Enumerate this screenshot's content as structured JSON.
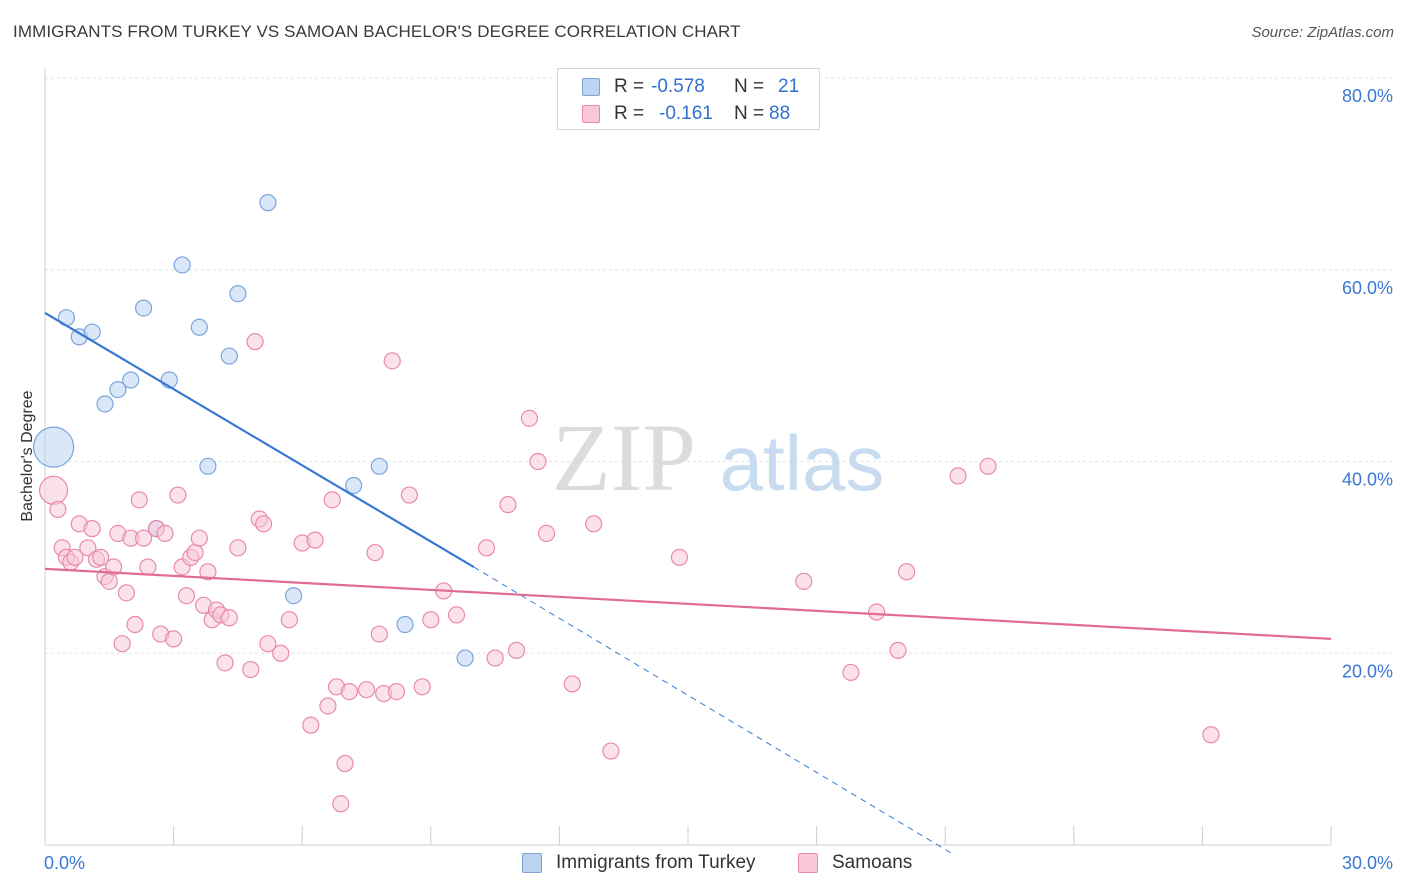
{
  "title": "IMMIGRANTS FROM TURKEY VS SAMOAN BACHELOR'S DEGREE CORRELATION CHART",
  "source": "Source: ZipAtlas.com",
  "watermark": {
    "zip": "ZIP",
    "atlas": "atlas"
  },
  "legend": {
    "rows": [
      {
        "r_label": "R =",
        "r_value": "-0.578",
        "n_label": "N =",
        "n_value": "21"
      },
      {
        "r_label": "R =",
        "r_value": "-0.161",
        "n_label": "N =",
        "n_value": "88"
      }
    ]
  },
  "colors": {
    "blue_fill": "#bcd4f2",
    "blue_stroke": "#7aa6dc",
    "blue_line": "#3a78d4",
    "pink_fill": "#f8c8d8",
    "pink_stroke": "#e98aaa",
    "pink_line": "#e06b94",
    "tick_label": "#3a78d4",
    "grid": "#e4e4e4"
  },
  "chart_data": {
    "type": "scatter",
    "title": "IMMIGRANTS FROM TURKEY VS SAMOAN BACHELOR'S DEGREE CORRELATION CHART",
    "xlabel": "",
    "ylabel": "Bachelor's Degree",
    "xlim": [
      0,
      30
    ],
    "ylim": [
      0,
      80
    ],
    "x_tick_labels": [
      "0.0%",
      "30.0%"
    ],
    "y_tick_labels": [
      "20.0%",
      "40.0%",
      "60.0%",
      "80.0%"
    ],
    "y_ticks": [
      20,
      40,
      60,
      80
    ],
    "grid": true,
    "legend_position": "bottom",
    "series": [
      {
        "name": "Immigrants from Turkey",
        "color": "#7aa6dc",
        "points": [
          [
            0.2,
            41.5,
            3
          ],
          [
            0.5,
            55,
            1
          ],
          [
            0.8,
            53,
            1
          ],
          [
            1.1,
            53.5,
            1
          ],
          [
            1.4,
            46,
            1
          ],
          [
            1.7,
            47.5,
            1
          ],
          [
            2.0,
            48.5,
            1
          ],
          [
            2.3,
            56,
            1
          ],
          [
            2.6,
            33,
            1
          ],
          [
            2.9,
            48.5,
            1
          ],
          [
            3.2,
            60.5,
            1
          ],
          [
            3.6,
            54,
            1
          ],
          [
            3.8,
            39.5,
            1
          ],
          [
            4.3,
            51,
            1
          ],
          [
            4.5,
            57.5,
            1
          ],
          [
            5.2,
            67,
            1
          ],
          [
            5.8,
            26,
            1
          ],
          [
            7.2,
            37.5,
            1
          ],
          [
            7.8,
            39.5,
            1
          ],
          [
            8.4,
            23,
            1
          ],
          [
            9.8,
            19.5,
            1
          ]
        ],
        "trend": {
          "x0": 0,
          "y0": 55.5,
          "x1": 10.0,
          "y1": 29.0,
          "dash_to_x": 21.2,
          "dash_to_y": -1.0
        }
      },
      {
        "name": "Samoans",
        "color": "#e98aaa",
        "points": [
          [
            0.2,
            37,
            2
          ],
          [
            0.3,
            35,
            1
          ],
          [
            0.4,
            31,
            1
          ],
          [
            0.5,
            30,
            1
          ],
          [
            0.6,
            29.5,
            1
          ],
          [
            0.7,
            30,
            1
          ],
          [
            0.8,
            33.5,
            1
          ],
          [
            1.0,
            31,
            1
          ],
          [
            1.1,
            33,
            1
          ],
          [
            1.2,
            29.8,
            1
          ],
          [
            1.3,
            30,
            1
          ],
          [
            1.4,
            28,
            1
          ],
          [
            1.5,
            27.5,
            1
          ],
          [
            1.6,
            29,
            1
          ],
          [
            1.7,
            32.5,
            1
          ],
          [
            1.8,
            21,
            1
          ],
          [
            1.9,
            26.3,
            1
          ],
          [
            2.0,
            32,
            1
          ],
          [
            2.1,
            23,
            1
          ],
          [
            2.2,
            36,
            1
          ],
          [
            2.3,
            32,
            1
          ],
          [
            2.4,
            29,
            1
          ],
          [
            2.6,
            33,
            1
          ],
          [
            2.7,
            22,
            1
          ],
          [
            2.8,
            32.5,
            1
          ],
          [
            3.0,
            21.5,
            1
          ],
          [
            3.1,
            36.5,
            1
          ],
          [
            3.2,
            29,
            1
          ],
          [
            3.3,
            26,
            1
          ],
          [
            3.4,
            30,
            1
          ],
          [
            3.5,
            30.5,
            1
          ],
          [
            3.6,
            32,
            1
          ],
          [
            3.7,
            25,
            1
          ],
          [
            3.8,
            28.5,
            1
          ],
          [
            3.9,
            23.5,
            1
          ],
          [
            4.0,
            24.5,
            1
          ],
          [
            4.1,
            24,
            1
          ],
          [
            4.2,
            19,
            1
          ],
          [
            4.3,
            23.7,
            1
          ],
          [
            4.5,
            31,
            1
          ],
          [
            4.8,
            18.3,
            1
          ],
          [
            4.9,
            52.5,
            1
          ],
          [
            5.0,
            34,
            1
          ],
          [
            5.1,
            33.5,
            1
          ],
          [
            5.2,
            21,
            1
          ],
          [
            5.5,
            20,
            1
          ],
          [
            5.7,
            23.5,
            1
          ],
          [
            6.0,
            31.5,
            1
          ],
          [
            6.2,
            12.5,
            1
          ],
          [
            6.3,
            31.8,
            1
          ],
          [
            6.6,
            14.5,
            1
          ],
          [
            6.7,
            36,
            1
          ],
          [
            6.8,
            16.5,
            1
          ],
          [
            7.0,
            8.5,
            1
          ],
          [
            7.1,
            16,
            1
          ],
          [
            6.9,
            4.3,
            1
          ],
          [
            7.5,
            16.2,
            1
          ],
          [
            7.7,
            30.5,
            1
          ],
          [
            7.8,
            22,
            1
          ],
          [
            7.9,
            15.8,
            1
          ],
          [
            8.2,
            16,
            1
          ],
          [
            8.1,
            50.5,
            1
          ],
          [
            8.5,
            36.5,
            1
          ],
          [
            8.8,
            16.5,
            1
          ],
          [
            9.0,
            23.5,
            1
          ],
          [
            9.3,
            26.5,
            1
          ],
          [
            9.6,
            24,
            1
          ],
          [
            10.3,
            31,
            1
          ],
          [
            10.5,
            19.5,
            1
          ],
          [
            10.8,
            35.5,
            1
          ],
          [
            11.0,
            20.3,
            1
          ],
          [
            11.3,
            44.5,
            1
          ],
          [
            11.5,
            40,
            1
          ],
          [
            11.7,
            32.5,
            1
          ],
          [
            12.3,
            16.8,
            1
          ],
          [
            12.8,
            33.5,
            1
          ],
          [
            13.2,
            9.8,
            1
          ],
          [
            14.8,
            30,
            1
          ],
          [
            17.7,
            27.5,
            1
          ],
          [
            18.8,
            18,
            1
          ],
          [
            19.4,
            24.3,
            1
          ],
          [
            19.9,
            20.3,
            1
          ],
          [
            20.1,
            28.5,
            1
          ],
          [
            21.3,
            38.5,
            1
          ],
          [
            22.0,
            39.5,
            1
          ],
          [
            27.2,
            11.5,
            1
          ]
        ],
        "trend": {
          "x0": 0,
          "y0": 28.8,
          "x1": 30.0,
          "y1": 21.5
        }
      }
    ]
  }
}
